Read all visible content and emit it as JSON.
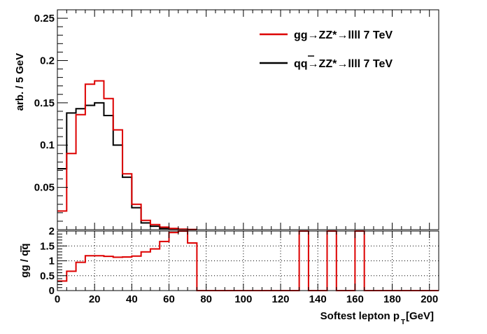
{
  "chart_data": {
    "type": "line",
    "step": true,
    "x_label": "Softest lepton p",
    "x_label_sub": "T",
    "x_label_unit": " [GeV]",
    "x_range": [
      0,
      205
    ],
    "bin_width": 5,
    "bin_edges_start": 0,
    "x_ticks": [
      0,
      20,
      40,
      60,
      80,
      100,
      120,
      140,
      160,
      180,
      200
    ],
    "x_tick_labels": [
      "0",
      "20",
      "40",
      "60",
      "80",
      "100",
      "120",
      "140",
      "160",
      "180",
      "200"
    ],
    "main": {
      "ylabel": "arb. / 5 GeV",
      "ylim": [
        0,
        0.26
      ],
      "y_ticks": [
        0.05,
        0.1,
        0.15,
        0.2,
        0.25
      ],
      "y_tick_labels": [
        "0.05",
        "0.1",
        "0.15",
        "0.2",
        "0.25"
      ],
      "series": [
        {
          "name": "gg",
          "label": "gg→ZZ*→llll 7 TeV",
          "color": "#dd0000",
          "values": [
            0.022,
            0.09,
            0.136,
            0.172,
            0.176,
            0.155,
            0.118,
            0.066,
            0.03,
            0.011,
            0.006,
            0.003,
            0.0015,
            0.0006,
            0.0002
          ]
        },
        {
          "name": "qq",
          "label": "qq→ZZ*→llll 7 TeV",
          "color": "#000000",
          "values": [
            0.072,
            0.138,
            0.143,
            0.147,
            0.15,
            0.135,
            0.1,
            0.062,
            0.026,
            0.008,
            0.004,
            0.0015,
            0.0008,
            0.0003,
            0.0001
          ]
        }
      ]
    },
    "ratio": {
      "ylabel": "gg / qq",
      "ylim": [
        0,
        2
      ],
      "y_ticks": [
        0,
        0.5,
        1,
        1.5,
        2
      ],
      "y_tick_labels": [
        "0",
        "0.5",
        "1",
        "1.5",
        "2"
      ],
      "color": "#dd0000",
      "values": [
        0.32,
        0.65,
        0.95,
        1.17,
        1.17,
        1.15,
        1.12,
        1.13,
        1.16,
        1.3,
        1.4,
        1.65,
        1.95,
        2.0,
        1.6,
        0,
        0,
        0,
        0,
        0,
        0,
        0,
        0,
        0,
        0,
        0,
        2.0,
        0,
        0,
        2.0,
        0,
        0,
        2.0,
        0,
        0,
        0,
        0,
        0,
        0,
        0,
        0
      ]
    }
  }
}
